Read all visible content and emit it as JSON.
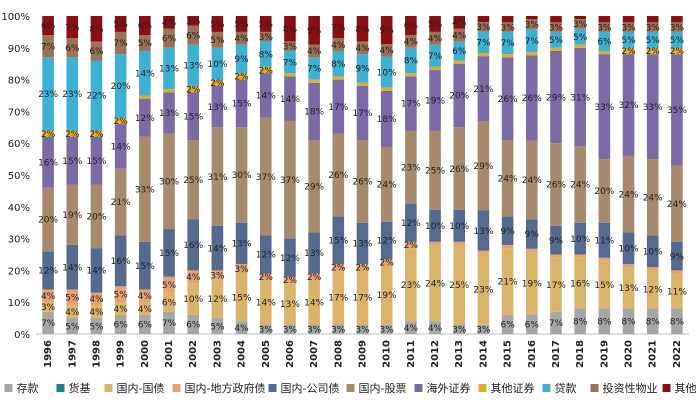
{
  "chart_data": {
    "type": "bar",
    "stacked": true,
    "percent": true,
    "title": "",
    "xlabel": "",
    "ylabel": "",
    "ylim": [
      0,
      100
    ],
    "yticks": [
      "0%",
      "10%",
      "20%",
      "30%",
      "40%",
      "50%",
      "60%",
      "70%",
      "80%",
      "90%",
      "100%"
    ],
    "grid": false,
    "legend_position": "bottom",
    "categories": [
      "1996",
      "1997",
      "1998",
      "1999",
      "2000",
      "2001",
      "2002",
      "2003",
      "2004",
      "2005",
      "2006",
      "2007",
      "2008",
      "2009",
      "2010",
      "2011",
      "2012",
      "2013",
      "2014",
      "2015",
      "2016",
      "2017",
      "2018",
      "2019",
      "2020",
      "2021",
      "2022"
    ],
    "series": [
      {
        "name": "存款",
        "color": "#a6a6a6",
        "values": [
          7,
          5,
          5,
          6,
          6,
          7,
          6,
          5,
          4,
          3,
          3,
          3,
          3,
          3,
          3,
          4,
          4,
          3,
          3,
          6,
          6,
          7,
          8,
          8,
          8,
          8,
          8
        ]
      },
      {
        "name": "货基",
        "color": "#1f7f8f",
        "values": [
          0,
          0,
          0,
          0,
          0,
          0,
          0,
          0,
          0,
          0,
          0,
          0,
          0,
          0,
          0,
          0,
          0,
          0,
          0,
          0,
          0,
          0,
          0,
          0,
          0,
          0,
          0
        ]
      },
      {
        "name": "国内-国债",
        "color": "#d9b46a",
        "values": [
          3,
          4,
          4,
          4,
          4,
          6,
          10,
          12,
          15,
          14,
          13,
          14,
          17,
          17,
          19,
          23,
          24,
          25,
          23,
          21,
          19,
          17,
          16,
          15,
          13,
          12,
          11
        ]
      },
      {
        "name": "国内-地方政府债",
        "color": "#e8a071",
        "values": [
          4,
          5,
          4,
          5,
          4,
          5,
          4,
          3,
          3,
          2,
          2,
          2,
          2,
          2,
          2,
          2,
          1,
          1,
          1,
          1,
          1,
          1,
          1,
          1,
          1,
          1,
          1
        ]
      },
      {
        "name": "国内-公司债",
        "color": "#56698f",
        "values": [
          12,
          14,
          14,
          16,
          15,
          15,
          16,
          14,
          13,
          12,
          12,
          13,
          15,
          13,
          12,
          12,
          10,
          10,
          13,
          9,
          9,
          9,
          10,
          11,
          10,
          10,
          9
        ]
      },
      {
        "name": "国内-股票",
        "color": "#a68a6d",
        "values": [
          20,
          19,
          20,
          21,
          33,
          30,
          25,
          31,
          30,
          37,
          37,
          29,
          26,
          26,
          24,
          23,
          25,
          26,
          29,
          24,
          24,
          26,
          24,
          20,
          24,
          24,
          24
        ]
      },
      {
        "name": "海外证券",
        "color": "#7b6aa6",
        "values": [
          16,
          15,
          15,
          14,
          12,
          13,
          15,
          13,
          15,
          14,
          14,
          18,
          17,
          17,
          18,
          17,
          19,
          20,
          21,
          26,
          26,
          29,
          31,
          33,
          32,
          33,
          35
        ]
      },
      {
        "name": "其他证券",
        "color": "#e0ad2a",
        "values": [
          2,
          2,
          2,
          2,
          1,
          1,
          2,
          2,
          2,
          2,
          1,
          1,
          1,
          1,
          1,
          1,
          1,
          1,
          1,
          1,
          1,
          1,
          1,
          1,
          2,
          2,
          2
        ]
      },
      {
        "name": "贷款",
        "color": "#3eb1d3",
        "values": [
          23,
          23,
          22,
          20,
          14,
          13,
          13,
          10,
          9,
          8,
          7,
          7,
          8,
          9,
          10,
          8,
          7,
          6,
          7,
          7,
          7,
          5,
          5,
          6,
          5,
          5,
          5
        ]
      },
      {
        "name": "投资性物业",
        "color": "#9c7257",
        "values": [
          7,
          6,
          6,
          7,
          5,
          6,
          6,
          5,
          4,
          3,
          3,
          4,
          4,
          4,
          4,
          4,
          4,
          4,
          3,
          3,
          3,
          3,
          3,
          3,
          3,
          3,
          3
        ]
      },
      {
        "name": "其他",
        "color": "#8a0f15",
        "values": [
          6,
          7,
          8,
          5,
          6,
          4,
          3,
          5,
          5,
          5,
          8,
          9,
          7,
          8,
          9,
          6,
          5,
          4,
          2,
          2,
          1,
          2,
          1,
          2,
          2,
          2,
          2
        ]
      }
    ]
  }
}
